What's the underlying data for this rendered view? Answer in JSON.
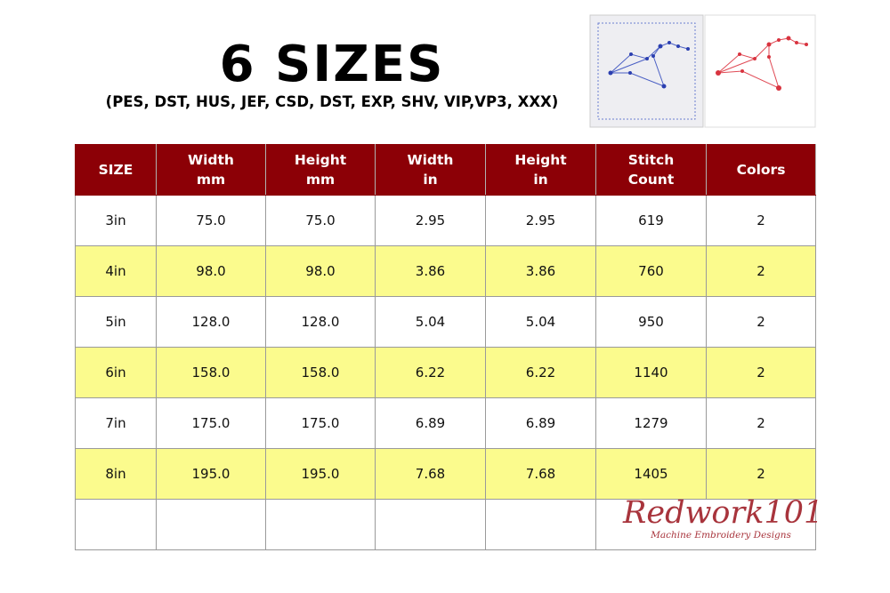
{
  "header": {
    "title": "6 SIZES",
    "subtitle": "(PES, DST, HUS, JEF, CSD, DST, EXP, SHV, VIP,VP3, XXX)"
  },
  "table": {
    "columns": [
      [
        "SIZE"
      ],
      [
        "Width",
        "mm"
      ],
      [
        "Height",
        "mm"
      ],
      [
        "Width",
        "in"
      ],
      [
        "Height",
        "in"
      ],
      [
        "Stitch",
        "Count"
      ],
      [
        "Colors"
      ]
    ],
    "rows": [
      [
        "3in",
        "75.0",
        "75.0",
        "2.95",
        "2.95",
        "619",
        "2"
      ],
      [
        "4in",
        "98.0",
        "98.0",
        "3.86",
        "3.86",
        "760",
        "2"
      ],
      [
        "5in",
        "128.0",
        "128.0",
        "5.04",
        "5.04",
        "950",
        "2"
      ],
      [
        "6in",
        "158.0",
        "158.0",
        "6.22",
        "6.22",
        "1140",
        "2"
      ],
      [
        "7in",
        "175.0",
        "175.0",
        "6.89",
        "6.89",
        "1279",
        "2"
      ],
      [
        "8in",
        "195.0",
        "195.0",
        "7.68",
        "7.68",
        "1405",
        "2"
      ]
    ]
  },
  "logo": {
    "name": "Redwork101",
    "tagline": "Machine Embroidery Designs"
  }
}
